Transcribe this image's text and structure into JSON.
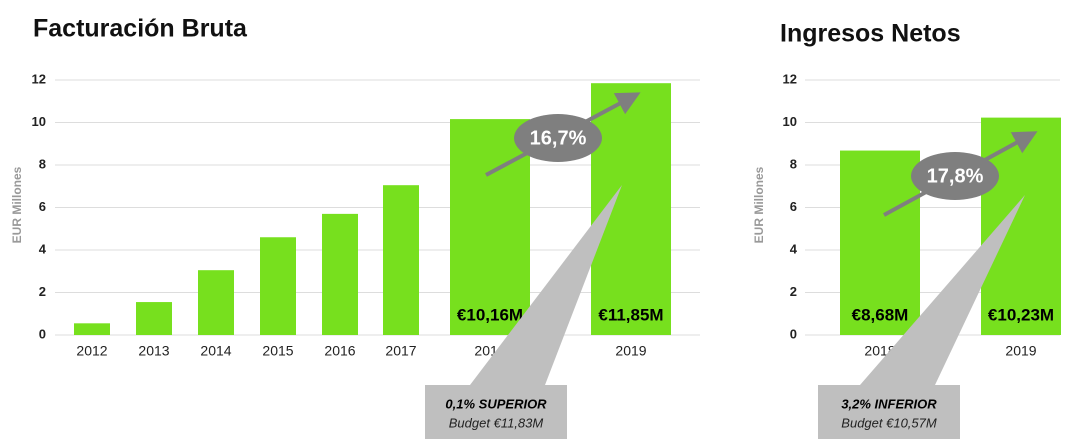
{
  "chart_data": [
    {
      "type": "bar",
      "title": "Facturación Bruta",
      "ylabel": "EUR Millones",
      "categories": [
        "2012",
        "2013",
        "2014",
        "2015",
        "2016",
        "2017",
        "2018",
        "2019"
      ],
      "values": [
        0.55,
        1.55,
        3.05,
        4.6,
        5.7,
        7.05,
        10.16,
        11.85
      ],
      "value_labels": [
        null,
        null,
        null,
        null,
        null,
        null,
        "€10,16M",
        "€11,85M"
      ],
      "color": "#77e01e",
      "ylim": [
        0,
        12
      ],
      "yticks": [
        0,
        2,
        4,
        6,
        8,
        10,
        12
      ],
      "grid": true,
      "annotations": {
        "growth": "16,7%",
        "callout_title": "0,1% SUPERIOR",
        "callout_text": "Budget €11,83M"
      }
    },
    {
      "type": "bar",
      "title": "Ingresos Netos",
      "ylabel": "EUR Millones",
      "categories": [
        "2018",
        "2019"
      ],
      "values": [
        8.68,
        10.23
      ],
      "value_labels": [
        "€8,68M",
        "€10,23M"
      ],
      "color": "#77e01e",
      "ylim": [
        0,
        12
      ],
      "yticks": [
        0,
        2,
        4,
        6,
        8,
        10,
        12
      ],
      "grid": true,
      "annotations": {
        "growth": "17,8%",
        "callout_title": "3,2% INFERIOR",
        "callout_text": "Budget €10,57M"
      }
    }
  ]
}
